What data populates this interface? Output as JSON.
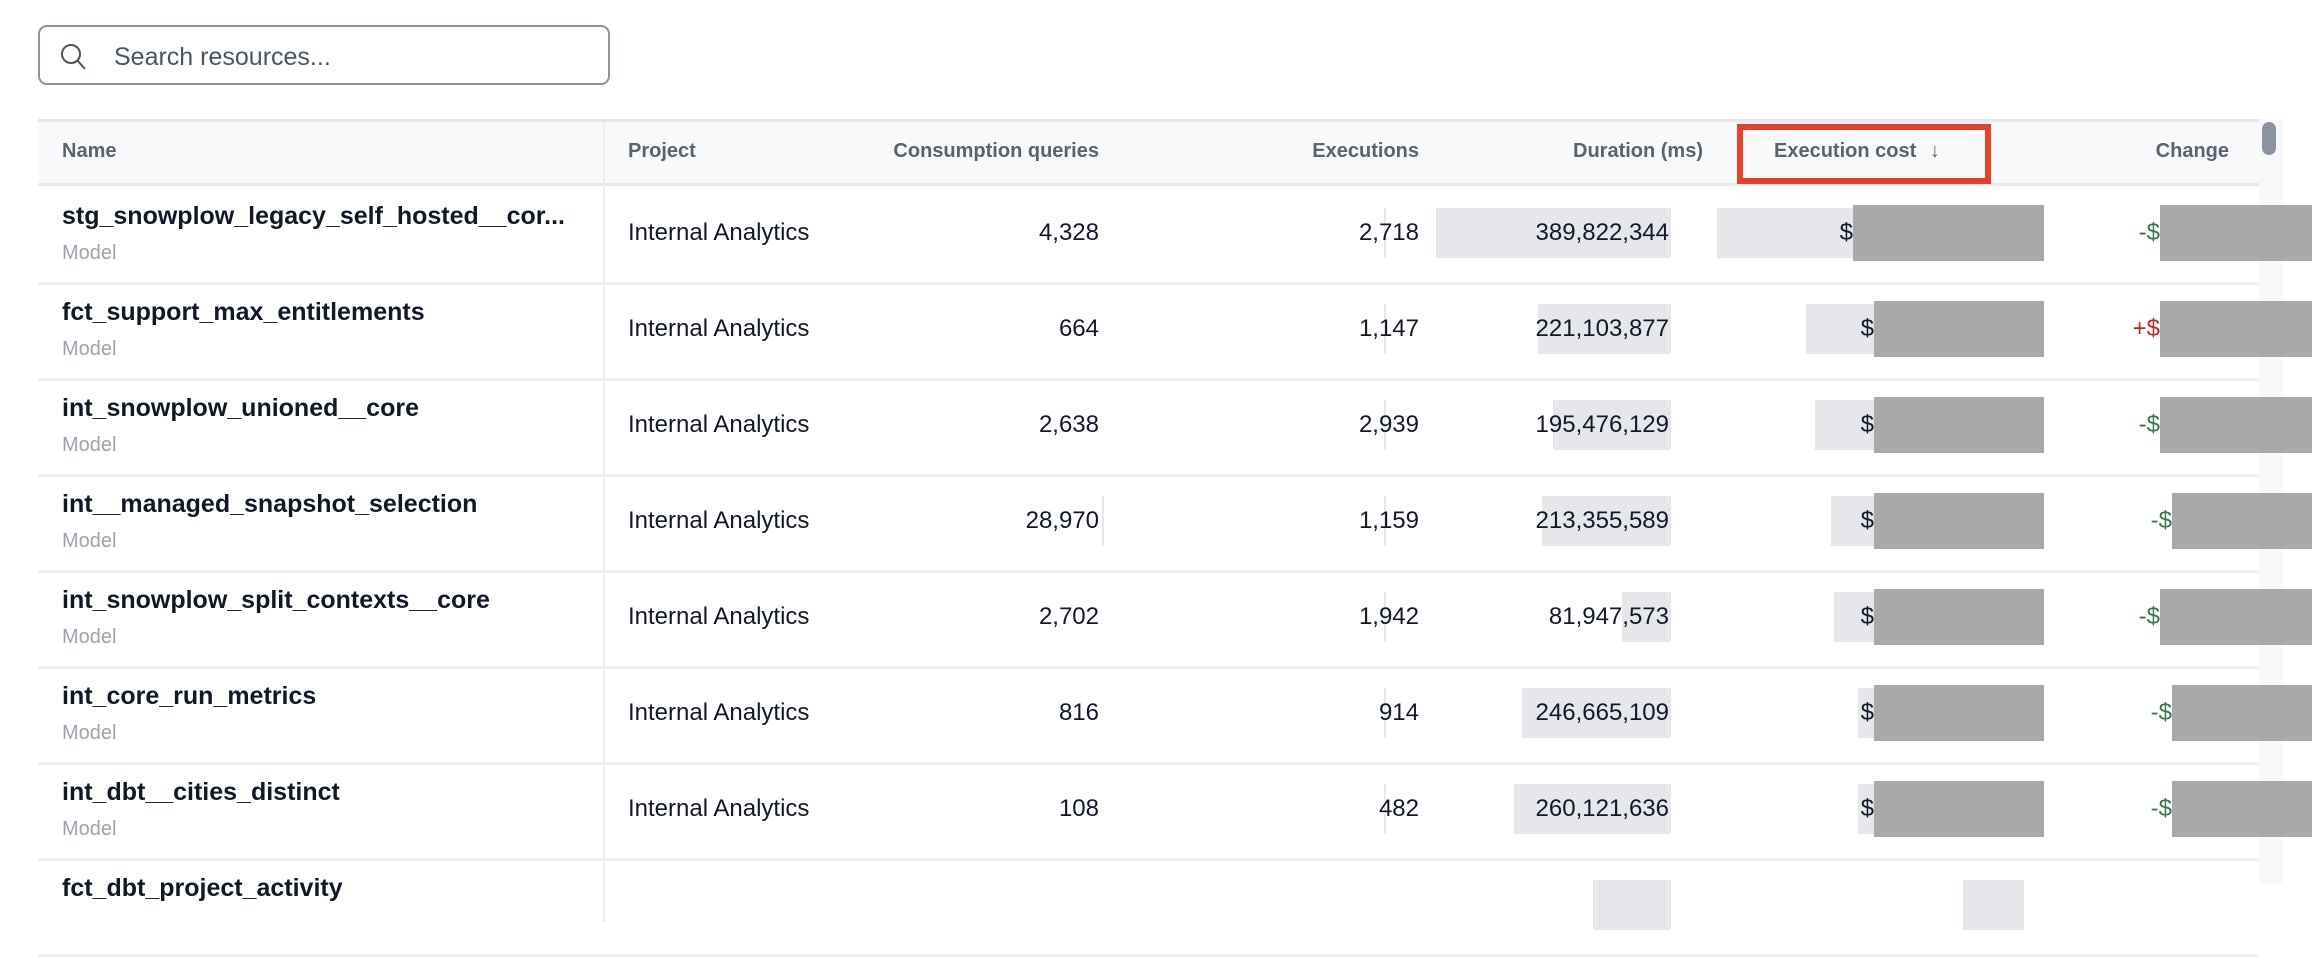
{
  "search": {
    "placeholder": "Search resources..."
  },
  "table": {
    "headers": {
      "name": "Name",
      "project": "Project",
      "consumption_queries": "Consumption queries",
      "executions": "Executions",
      "duration": "Duration (ms)",
      "execution_cost": "Execution cost",
      "sort_indicator": "↓",
      "change": "Change"
    },
    "sorted_by": "execution_cost",
    "sort_direction": "descending",
    "colors": {
      "negative_change": "#2e7d4f",
      "positive_change": "#c62828",
      "highlight": "#e8412a"
    },
    "rows": [
      {
        "name": "stg_snowplow_legacy_self_hosted__cor...",
        "type": "Model",
        "project": "Internal Analytics",
        "consumption_queries": "4,328",
        "executions": "2,718",
        "duration": "389,822,344",
        "duration_fill": 1.0,
        "cost_prefix": "$",
        "cost_fill": 1.0,
        "change_prefix": "-$",
        "change_direction": "down"
      },
      {
        "name": "fct_support_max_entitlements",
        "type": "Model",
        "project": "Internal Analytics",
        "consumption_queries": "664",
        "executions": "1,147",
        "duration": "221,103,877",
        "duration_fill": 0.567,
        "cost_prefix": "$",
        "cost_fill": 0.71,
        "change_prefix": "+$",
        "change_direction": "up"
      },
      {
        "name": "int_snowplow_unioned__core",
        "type": "Model",
        "project": "Internal Analytics",
        "consumption_queries": "2,638",
        "executions": "2,939",
        "duration": "195,476,129",
        "duration_fill": 0.501,
        "cost_prefix": "$",
        "cost_fill": 0.68,
        "change_prefix": "-$",
        "change_direction": "down"
      },
      {
        "name": "int__managed_snapshot_selection",
        "type": "Model",
        "project": "Internal Analytics",
        "consumption_queries": "28,970",
        "executions": "1,159",
        "duration": "213,355,589",
        "duration_fill": 0.547,
        "cost_prefix": "$",
        "cost_fill": 0.63,
        "change_prefix": "-$",
        "change_direction": "down"
      },
      {
        "name": "int_snowplow_split_contexts__core",
        "type": "Model",
        "project": "Internal Analytics",
        "consumption_queries": "2,702",
        "executions": "1,942",
        "duration": "81,947,573",
        "duration_fill": 0.21,
        "cost_prefix": "$",
        "cost_fill": 0.62,
        "change_prefix": "-$",
        "change_direction": "down"
      },
      {
        "name": "int_core_run_metrics",
        "type": "Model",
        "project": "Internal Analytics",
        "consumption_queries": "816",
        "executions": "914",
        "duration": "246,665,109",
        "duration_fill": 0.633,
        "cost_prefix": "$",
        "cost_fill": 0.54,
        "change_prefix": "-$",
        "change_direction": "down"
      },
      {
        "name": "int_dbt__cities_distinct",
        "type": "Model",
        "project": "Internal Analytics",
        "consumption_queries": "108",
        "executions": "482",
        "duration": "260,121,636",
        "duration_fill": 0.667,
        "cost_prefix": "$",
        "cost_fill": 0.54,
        "change_prefix": "-$",
        "change_direction": "down"
      },
      {
        "name": "fct_dbt_project_activity",
        "type": "",
        "project": "",
        "consumption_queries": "",
        "executions": "",
        "duration": "",
        "duration_fill": 0.33,
        "cost_prefix": "",
        "cost_fill": 0.2,
        "change_prefix": "",
        "change_direction": ""
      }
    ]
  }
}
